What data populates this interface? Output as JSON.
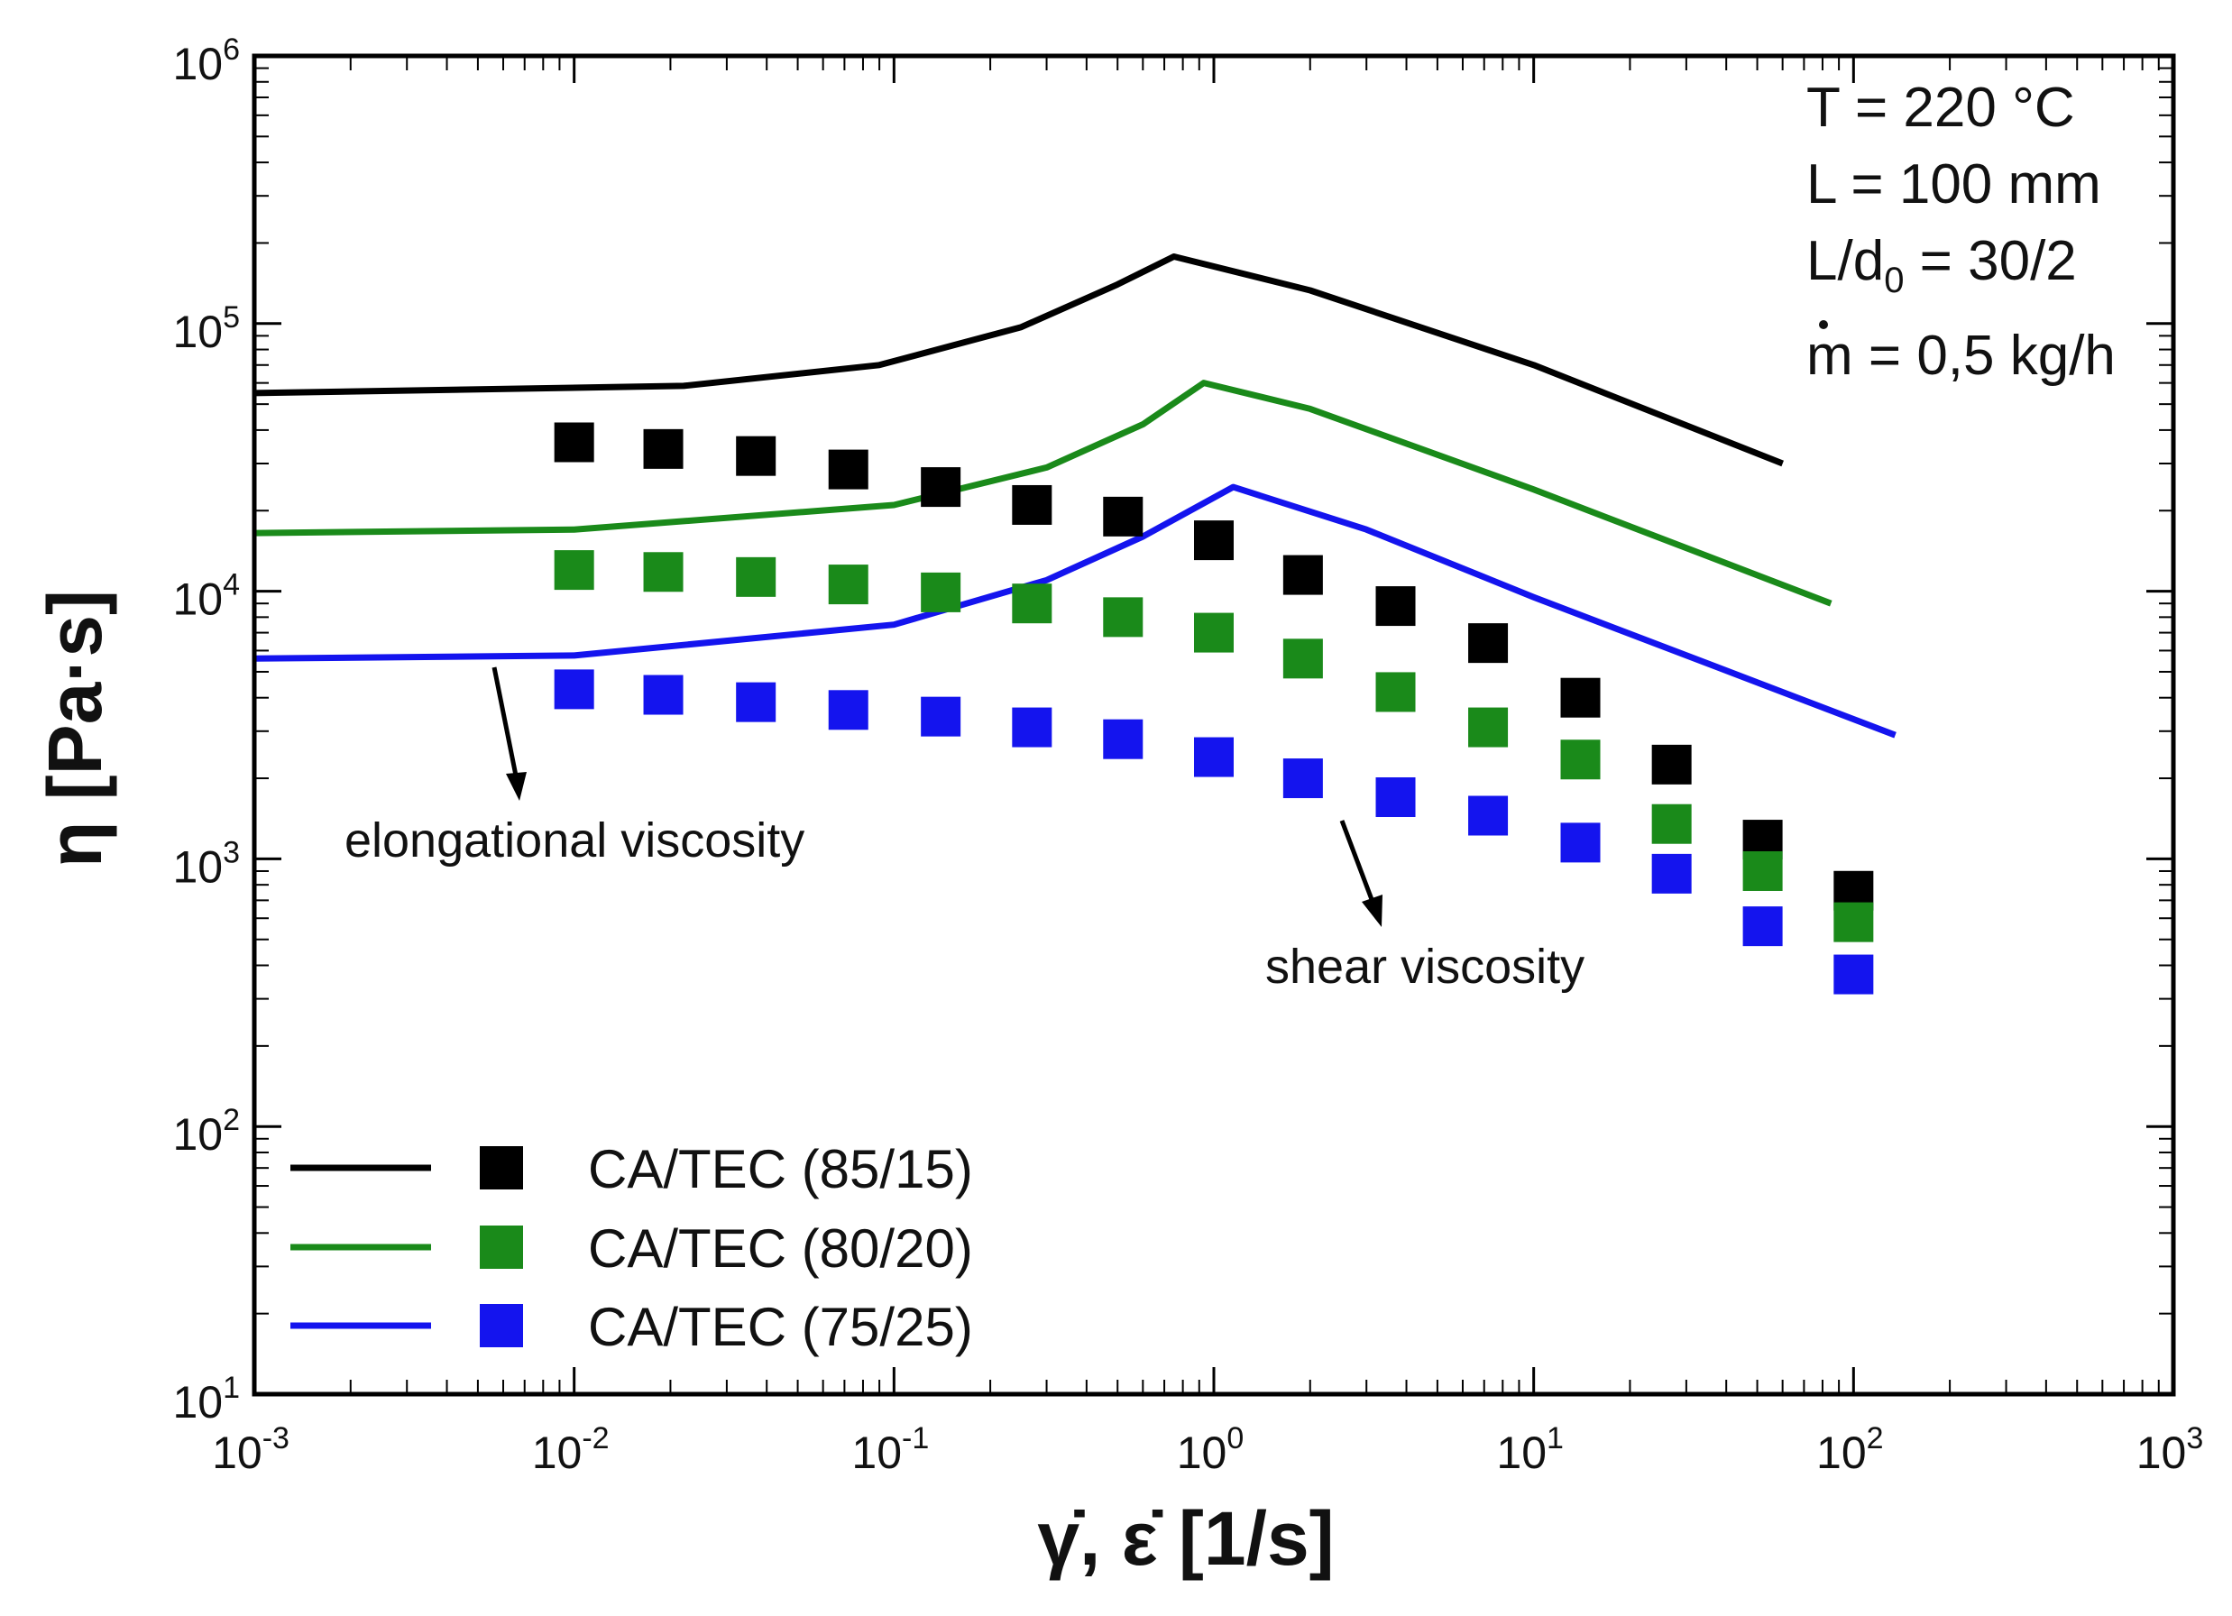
{
  "chart_data": {
    "type": "scatter",
    "title": "",
    "xlabel": "γ̇, ε̇ [1/s]",
    "ylabel": "η [Pa·s]",
    "xscale": "log",
    "yscale": "log",
    "xlim": [
      0.001,
      1000
    ],
    "ylim": [
      10,
      1000000
    ],
    "x_ticks": [
      {
        "base": "10",
        "exp": "-3",
        "value": 0.001
      },
      {
        "base": "10",
        "exp": "-2",
        "value": 0.01
      },
      {
        "base": "10",
        "exp": "-1",
        "value": 0.1
      },
      {
        "base": "10",
        "exp": "0",
        "value": 1
      },
      {
        "base": "10",
        "exp": "1",
        "value": 10
      },
      {
        "base": "10",
        "exp": "2",
        "value": 100
      },
      {
        "base": "10",
        "exp": "3",
        "value": 1000
      }
    ],
    "y_ticks": [
      {
        "base": "10",
        "exp": "1",
        "value": 10
      },
      {
        "base": "10",
        "exp": "2",
        "value": 100
      },
      {
        "base": "10",
        "exp": "3",
        "value": 1000
      },
      {
        "base": "10",
        "exp": "4",
        "value": 10000
      },
      {
        "base": "10",
        "exp": "5",
        "value": 100000
      },
      {
        "base": "10",
        "exp": "6",
        "value": 1000000
      }
    ],
    "series": [
      {
        "name": "CA/TEC (85/15)",
        "color": "#000000",
        "elongational": {
          "x": [
            0.001,
            0.022,
            0.09,
            0.25,
            0.5,
            0.75,
            2.0,
            10.0,
            60.0
          ],
          "y": [
            55000,
            58500,
            70000,
            97000,
            140000,
            178000,
            133000,
            70000,
            30000
          ]
        },
        "shear": {
          "x": [
            0.01,
            0.019,
            0.037,
            0.072,
            0.14,
            0.27,
            0.52,
            1.0,
            1.9,
            3.7,
            7.2,
            14,
            27,
            52,
            100
          ],
          "y": [
            36000,
            34000,
            32000,
            28500,
            24500,
            21000,
            19000,
            15500,
            11500,
            8800,
            6400,
            4000,
            2250,
            1180,
            760
          ]
        }
      },
      {
        "name": "CA/TEC (80/20)",
        "color": "#1a8a1a",
        "elongational": {
          "x": [
            0.001,
            0.01,
            0.1,
            0.3,
            0.6,
            0.93,
            2.0,
            10.0,
            85.0
          ],
          "y": [
            16500,
            17000,
            21000,
            29000,
            42000,
            60000,
            48000,
            24000,
            9000
          ]
        },
        "shear": {
          "x": [
            0.01,
            0.019,
            0.037,
            0.072,
            0.14,
            0.27,
            0.52,
            1.0,
            1.9,
            3.7,
            7.2,
            14,
            27,
            52,
            100
          ],
          "y": [
            12000,
            11800,
            11300,
            10600,
            9900,
            9000,
            8000,
            7000,
            5600,
            4200,
            3100,
            2350,
            1350,
            900,
            580
          ]
        }
      },
      {
        "name": "CA/TEC (75/25)",
        "color": "#1414ee",
        "elongational": {
          "x": [
            0.001,
            0.01,
            0.1,
            0.3,
            0.6,
            1.15,
            3.0,
            10.0,
            135.0
          ],
          "y": [
            5600,
            5750,
            7500,
            11000,
            16000,
            24500,
            17000,
            9500,
            2900
          ]
        },
        "shear": {
          "x": [
            0.01,
            0.019,
            0.037,
            0.072,
            0.14,
            0.27,
            0.52,
            1.0,
            1.9,
            3.7,
            7.2,
            14,
            27,
            52,
            100
          ],
          "y": [
            4300,
            4100,
            3850,
            3600,
            3400,
            3100,
            2800,
            2400,
            2000,
            1700,
            1450,
            1150,
            880,
            560,
            370
          ]
        }
      }
    ],
    "annotations": {
      "elongational": "elongational viscosity",
      "shear": "shear viscosity"
    },
    "conditions": {
      "t": "T = 220 °C",
      "l": "L = 100 mm",
      "ld_prefix": "L/d",
      "ld_sub": "0",
      "ld_suffix": " = 30/2",
      "mdot_symbol": "m",
      "mdot_value": " = 0,5 kg/h"
    },
    "legend_position": "bottom-left",
    "grid": false
  }
}
